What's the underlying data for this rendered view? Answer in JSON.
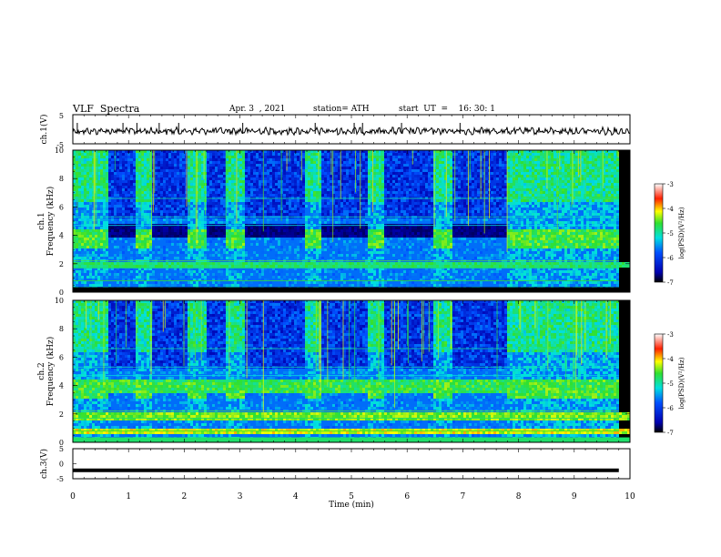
{
  "header": {
    "title": "VLF  Spectra",
    "date": "Apr. 3  , 2021",
    "station": "station= ATH",
    "start_ut": "start  UT  =    16: 30: 1"
  },
  "chart_data": [
    {
      "type": "line",
      "panel": "ch1-waveform",
      "ylabel": "ch.1(V)",
      "ylim": [
        -5,
        5
      ],
      "yticks": [
        "5",
        "-5"
      ],
      "xlim": [
        0,
        10
      ],
      "trace_color": "#000000"
    },
    {
      "type": "heatmap",
      "panel": "ch1-spectrogram",
      "ylabel": "ch.1\nFrequency (kHz)",
      "ylabel_line1": "ch.1",
      "ylabel_line2": "Frequency  (kHz)",
      "ylim": [
        0,
        10
      ],
      "yticks": [
        "0",
        "2",
        "4",
        "6",
        "8",
        "10"
      ],
      "xlim": [
        0,
        10
      ],
      "colorbar": {
        "label": "log(PSD)(V²/Hz)",
        "ticks": [
          "-3",
          "-4",
          "-5",
          "-6",
          "-7"
        ],
        "range": [
          -7,
          -3
        ]
      },
      "quiet_intervals_min": [
        [
          0.62,
          1.08
        ],
        [
          1.42,
          2.05
        ],
        [
          2.38,
          2.7
        ],
        [
          3.05,
          4.12
        ],
        [
          4.45,
          5.25
        ],
        [
          5.55,
          6.45
        ],
        [
          6.8,
          7.75
        ]
      ]
    },
    {
      "type": "heatmap",
      "panel": "ch2-spectrogram",
      "ylabel": "ch.2\nFrequency (kHz)",
      "ylabel_line1": "ch.2",
      "ylabel_line2": "Frequency  (kHz)",
      "ylim": [
        0,
        10
      ],
      "yticks": [
        "0",
        "2",
        "4",
        "6",
        "8",
        "10"
      ],
      "xlim": [
        0,
        10
      ],
      "colorbar": {
        "label": "log(PSD)(V²/Hz)",
        "ticks": [
          "-3",
          "-4",
          "-5",
          "-6",
          "-7"
        ],
        "range": [
          -7,
          -3
        ]
      },
      "quiet_intervals_min": [
        [
          0.62,
          1.08
        ],
        [
          1.42,
          2.05
        ],
        [
          2.38,
          2.7
        ],
        [
          3.05,
          4.12
        ],
        [
          4.45,
          5.25
        ],
        [
          5.55,
          6.45
        ],
        [
          6.8,
          7.75
        ]
      ]
    },
    {
      "type": "line",
      "panel": "ch3-waveform",
      "ylabel": "ch.3(V)",
      "ylim": [
        -5,
        5
      ],
      "yticks": [
        "5",
        "0",
        "-5"
      ],
      "xlim": [
        0,
        10
      ],
      "xlabel": "Time  (min)",
      "xticks": [
        "0",
        "1",
        "2",
        "3",
        "4",
        "5",
        "6",
        "7",
        "8",
        "9",
        "10"
      ],
      "trace_level_v": -2.2,
      "data_end_min": 9.8
    }
  ]
}
